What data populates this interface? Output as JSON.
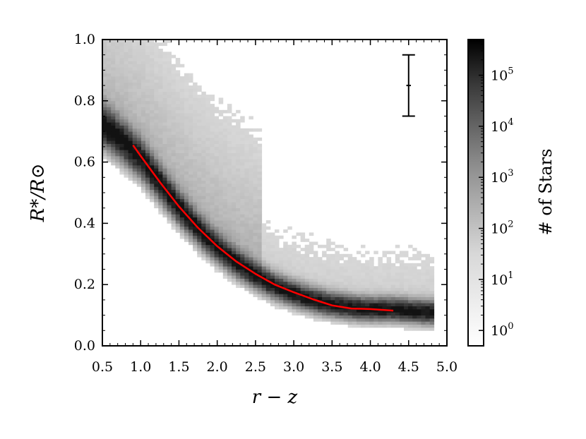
{
  "chart_data": {
    "type": "heatmap",
    "title": "",
    "xlabel": "r − z",
    "ylabel": "R*/R⊙",
    "xlim": [
      0.5,
      5.0
    ],
    "ylim": [
      0.0,
      1.0
    ],
    "xticks": [
      "0.5",
      "1.0",
      "1.5",
      "2.0",
      "2.5",
      "3.0",
      "3.5",
      "4.0",
      "4.5",
      "5.0"
    ],
    "yticks": [
      "0.0",
      "0.2",
      "0.4",
      "0.6",
      "0.8",
      "1.0"
    ],
    "grid": false,
    "density_ridge": {
      "x": [
        0.5,
        0.75,
        1.0,
        1.25,
        1.5,
        1.75,
        2.0,
        2.25,
        2.5,
        2.75,
        3.0,
        3.25,
        3.5,
        3.75,
        4.0,
        4.25,
        4.5,
        4.75
      ],
      "y": [
        0.72,
        0.67,
        0.61,
        0.53,
        0.45,
        0.38,
        0.32,
        0.27,
        0.23,
        0.195,
        0.17,
        0.15,
        0.135,
        0.125,
        0.12,
        0.12,
        0.115,
        0.11
      ]
    },
    "fit_line": {
      "color": "#ff0000",
      "x": [
        0.9,
        1.0,
        1.25,
        1.5,
        1.75,
        2.0,
        2.25,
        2.5,
        2.75,
        3.0,
        3.25,
        3.5,
        3.75,
        4.0,
        4.3
      ],
      "y": [
        0.655,
        0.62,
        0.535,
        0.455,
        0.385,
        0.325,
        0.275,
        0.235,
        0.2,
        0.175,
        0.152,
        0.132,
        0.122,
        0.12,
        0.115
      ]
    },
    "error_bar": {
      "x": 4.5,
      "y": 0.85,
      "yerr": 0.1,
      "xerr": 0.03
    },
    "colorbar": {
      "label": "# of Stars",
      "scale": "log",
      "range": [
        0.5,
        500000
      ],
      "ticks": [
        {
          "value": 1,
          "base": "10",
          "exp": "0"
        },
        {
          "value": 10,
          "base": "10",
          "exp": "1"
        },
        {
          "value": 100,
          "base": "10",
          "exp": "2"
        },
        {
          "value": 1000,
          "base": "10",
          "exp": "3"
        },
        {
          "value": 10000,
          "base": "10",
          "exp": "4"
        },
        {
          "value": 100000,
          "base": "10",
          "exp": "5"
        }
      ],
      "colormap": "gray_r"
    }
  }
}
